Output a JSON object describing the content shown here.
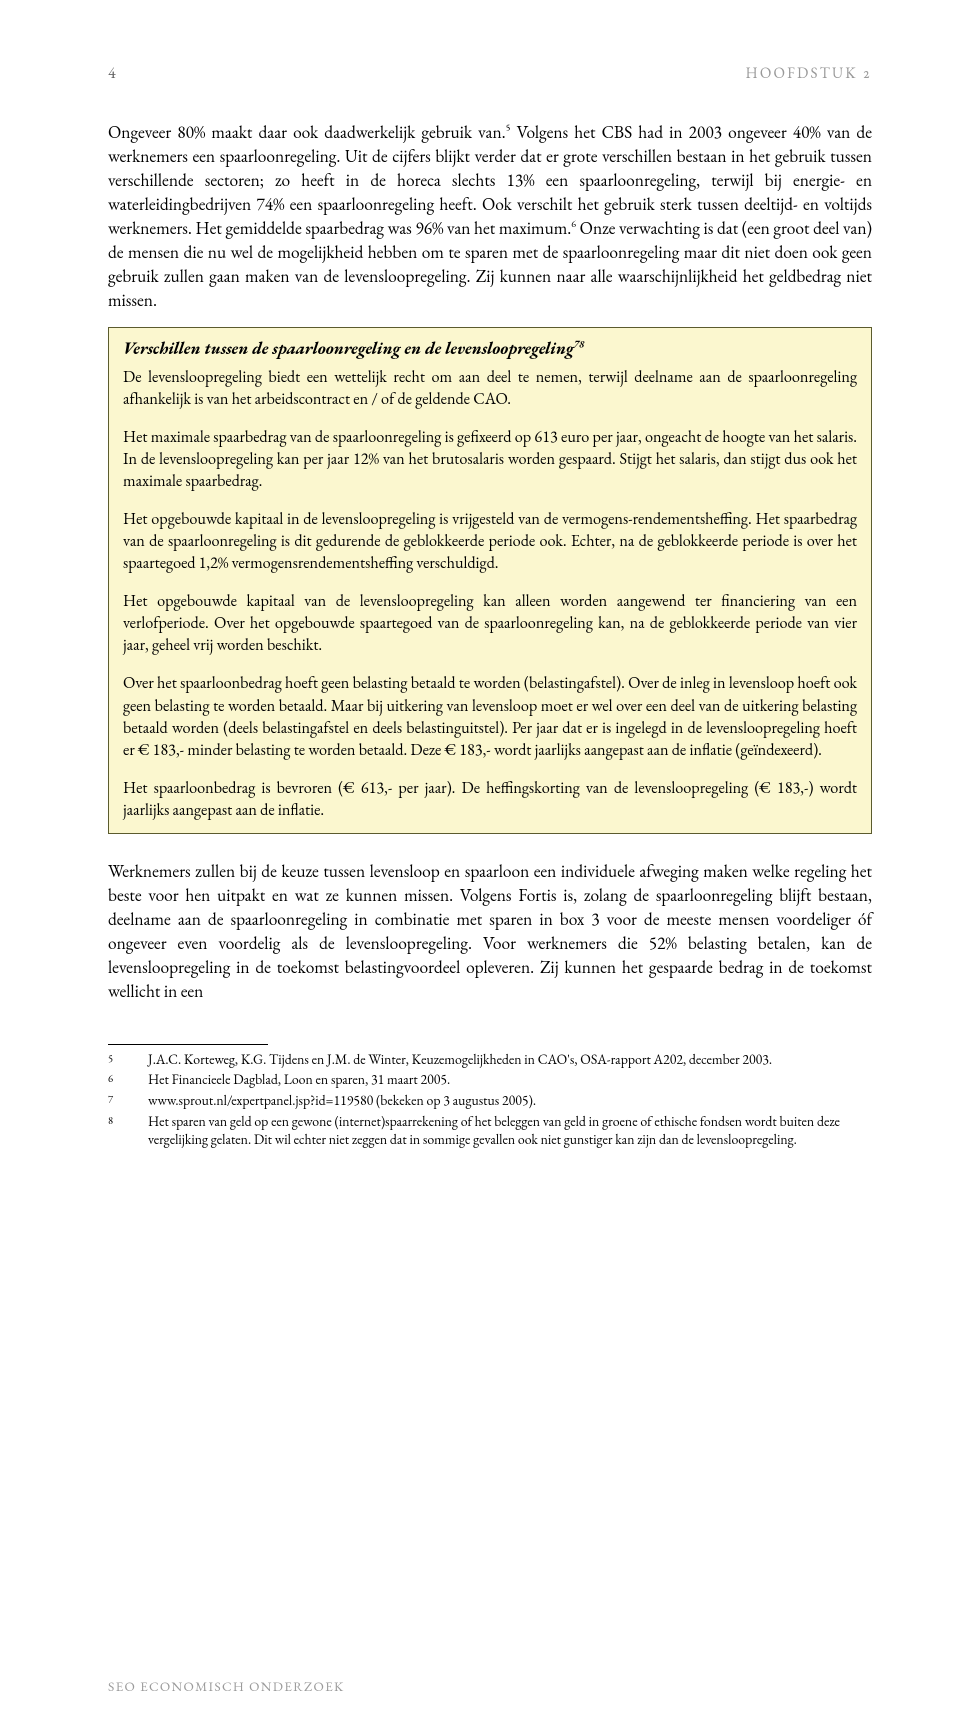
{
  "colors": {
    "page_bg": "#ffffff",
    "text": "#000000",
    "header_muted": "#999999",
    "pagenum": "#666666",
    "box_bg": "#fbf7cf",
    "box_border": "#5b5b2e",
    "footer": "#9b9b9b",
    "rule": "#000000"
  },
  "typography": {
    "body_family": "Garamond",
    "body_size_pt": 13,
    "box_size_pt": 12,
    "footnote_size_pt": 10
  },
  "header": {
    "page_number": "4",
    "chapter": "HOOFDSTUK 2"
  },
  "paragraphs": {
    "p1_a": "Ongeveer 80% maakt daar ook daadwerkelijk gebruik van.",
    "p1_sup1": "5",
    "p1_b": " Volgens het CBS had in 2003 ongeveer 40% van de werknemers een spaarloonregeling. Uit de cijfers blijkt verder dat er grote verschillen bestaan in het gebruik tussen verschillende sectoren; zo heeft in de horeca slechts 13% een spaarloonregeling, terwijl bij energie- en waterleidingbedrijven 74% een spaarloonregeling heeft. Ook verschilt het gebruik sterk tussen deeltijd- en voltijds werknemers. Het gemiddelde spaarbedrag was 96% van het maximum.",
    "p1_sup2": "6",
    "p1_c": " Onze verwachting is dat (een groot deel van) de mensen die nu wel de mogelijkheid hebben om te sparen met de spaarloonregeling maar dit niet doen ook geen gebruik zullen gaan maken van de levensloopregeling. Zij kunnen naar alle waarschijnlijkheid het geldbedrag niet missen.",
    "p2": "Werknemers zullen bij de keuze tussen levensloop en spaarloon een individuele afweging maken welke regeling het beste voor hen uitpakt en wat ze kunnen missen. Volgens Fortis is, zolang de spaarloonregeling blijft bestaan, deelname aan de spaarloonregeling in combinatie met sparen in box 3 voor de meeste mensen voordeliger óf ongeveer even voordelig als de levensloopregeling. Voor werknemers die 52% belasting betalen, kan de levensloopregeling in de toekomst belastingvoordeel opleveren. Zij kunnen het gespaarde bedrag in de toekomst wellicht in een"
  },
  "box": {
    "heading_text": "Verschillen tussen de spaarloonregeling en de levensloopregeling",
    "heading_sup": "78",
    "para1": "De levensloopregeling biedt een wettelijk recht om aan deel te nemen, terwijl deelname aan de spaarloonregeling afhankelijk is van het arbeidscontract en / of de geldende CAO.",
    "para2": "Het maximale spaarbedrag van de spaarloonregeling is gefixeerd op 613 euro per jaar, ongeacht de hoogte van het salaris. In de levensloopregeling kan per jaar 12% van het brutosalaris worden gespaard. Stijgt het salaris, dan stijgt dus ook het maximale spaarbedrag.",
    "para3": "Het opgebouwde kapitaal in de levensloopregeling is vrijgesteld van de vermogens-rendementsheffing. Het spaarbedrag van de spaarloonregeling is dit gedurende de geblokkeerde periode ook. Echter, na de geblokkeerde periode is over het spaartegoed 1,2% vermogensrendementsheffing verschuldigd.",
    "para4": "Het opgebouwde kapitaal van de levensloopregeling kan alleen worden aangewend ter financiering van een verlofperiode. Over het opgebouwde spaartegoed van de spaarloonregeling kan, na de geblokkeerde periode van vier jaar, geheel vrij worden beschikt.",
    "para5": "Over het spaarloonbedrag hoeft geen belasting betaald te worden (belastingafstel). Over de inleg in levensloop hoeft ook geen belasting te worden betaald. Maar bij uitkering van levensloop moet er wel over een deel van de uitkering belasting betaald worden (deels belastingafstel en deels belastinguitstel). Per jaar dat er is ingelegd in de levensloopregeling hoeft er € 183,- minder belasting te worden betaald. Deze € 183,- wordt jaarlijks aangepast aan de inflatie (geïndexeerd).",
    "para6": "Het spaarloonbedrag is bevroren (€ 613,- per jaar). De heffingskorting van de levensloopregeling (€ 183,-) wordt jaarlijks aangepast aan de inflatie."
  },
  "footnotes": [
    {
      "num": "5",
      "text": "J.A.C. Korteweg, K.G. Tijdens en J.M. de Winter, Keuzemogelijkheden in CAO's, OSA-rapport A202, december 2003."
    },
    {
      "num": "6",
      "text": "Het Financieele Dagblad, Loon en sparen, 31 maart 2005."
    },
    {
      "num": "7",
      "text": "www.sprout.nl/expertpanel.jsp?id=119580 (bekeken op 3 augustus 2005)."
    },
    {
      "num": "8",
      "text": "Het sparen van geld op een gewone (internet)spaarrekening of het beleggen van geld in groene of ethische fondsen wordt buiten deze vergelijking gelaten. Dit wil echter niet zeggen dat in sommige gevallen ook niet gunstiger kan zijn dan de levensloopregeling."
    }
  ],
  "footer": "SEO ECONOMISCH ONDERZOEK"
}
